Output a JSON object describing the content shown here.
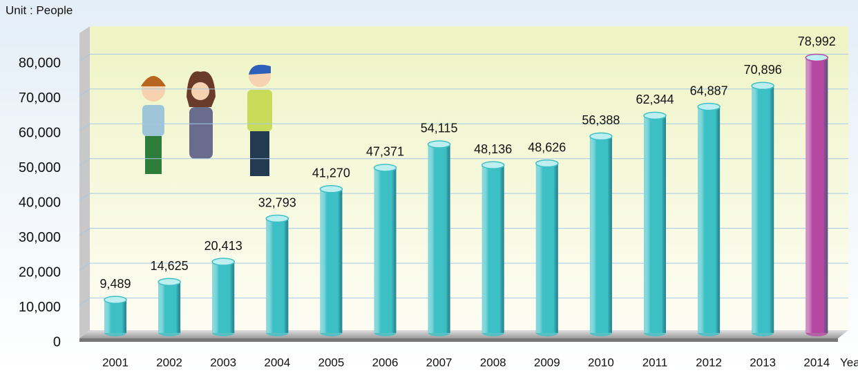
{
  "chart_data": {
    "type": "bar",
    "unit_label": "Unit : People",
    "x_label": "Year",
    "categories": [
      "2001",
      "2002",
      "2003",
      "2004",
      "2005",
      "2006",
      "2007",
      "2008",
      "2009",
      "2010",
      "2011",
      "2012",
      "2013",
      "2014"
    ],
    "values": [
      9489,
      14625,
      20413,
      32793,
      41270,
      47371,
      54115,
      48136,
      48626,
      56388,
      62344,
      64887,
      70896,
      78992
    ],
    "value_labels": [
      "9,489",
      "14,625",
      "20,413",
      "32,793",
      "41,270",
      "47,371",
      "54,115",
      "48,136",
      "48,626",
      "56,388",
      "62,344",
      "64,887",
      "70,896",
      "78,992"
    ],
    "colors": [
      "#3cc0c6",
      "#3cc0c6",
      "#3cc0c6",
      "#3cc0c6",
      "#3cc0c6",
      "#3cc0c6",
      "#3cc0c6",
      "#3cc0c6",
      "#3cc0c6",
      "#3cc0c6",
      "#3cc0c6",
      "#3cc0c6",
      "#3cc0c6",
      "#b4479f"
    ],
    "ylim": [
      0,
      88000
    ],
    "yticks": [
      0,
      {
        "value": 10000,
        "label": "10,000"
      },
      {
        "value": 20000,
        "label": "20,000"
      },
      {
        "value": 30000,
        "label": "30,000"
      },
      {
        "value": 40000,
        "label": "40,000"
      },
      {
        "value": 50000,
        "label": "50,000"
      },
      {
        "value": 60000,
        "label": "60,000"
      },
      {
        "value": 70000,
        "label": "70,000"
      },
      {
        "value": 80000,
        "label": "80,000"
      }
    ],
    "grid": true
  }
}
